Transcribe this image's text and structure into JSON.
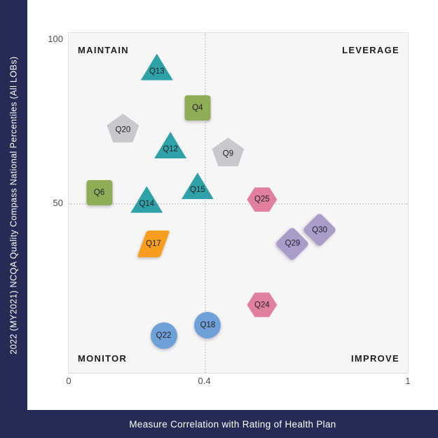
{
  "colors": {
    "navy": "#262B55",
    "plot_bg": "#F6F6F7",
    "plot_border": "#E1E1E4",
    "grid": "#D8D8DB",
    "teal": "#2FA2A9",
    "green": "#8FAC57",
    "gray": "#C9C9CD",
    "orange": "#F99D1E",
    "blue": "#6FA0D7",
    "pink": "#E0809E",
    "purple": "#A99CC8",
    "label_text": "#222327",
    "tick_text": "#4E4E4E"
  },
  "chart_data": {
    "type": "scatter",
    "title": "",
    "xlabel": "Measure Correlation with Rating of Health Plan",
    "ylabel": "2022 (MY2021) NCQA Quality Compass National Percentiles (All LOBs)",
    "xlim": [
      0,
      1
    ],
    "ylim": [
      0,
      100
    ],
    "grid": "quadrant dotted lines only",
    "gridlines": {
      "x": 0.4,
      "y": 50,
      "style": "dotted"
    },
    "x_ticks": [
      {
        "value": 0,
        "label": "0"
      },
      {
        "value": 0.4,
        "label": "0.4"
      },
      {
        "value": 1,
        "label": "1"
      }
    ],
    "y_ticks": [
      {
        "value": 100,
        "label": "100"
      },
      {
        "value": 50,
        "label": "50"
      }
    ],
    "quadrant_labels": {
      "top_left": "MAINTAIN",
      "top_right": "LEVERAGE",
      "bottom_left": "MONITOR",
      "bottom_right": "IMPROVE"
    },
    "points": [
      {
        "label": "Q13",
        "x": 0.26,
        "y": 90,
        "shape": "triangle",
        "color": "teal"
      },
      {
        "label": "Q4",
        "x": 0.38,
        "y": 78,
        "shape": "square",
        "color": "green"
      },
      {
        "label": "Q20",
        "x": 0.16,
        "y": 72,
        "shape": "pentagon",
        "color": "gray"
      },
      {
        "label": "Q12",
        "x": 0.3,
        "y": 67,
        "shape": "triangle",
        "color": "teal"
      },
      {
        "label": "Q9",
        "x": 0.47,
        "y": 65,
        "shape": "pentagon",
        "color": "gray"
      },
      {
        "label": "Q15",
        "x": 0.38,
        "y": 55,
        "shape": "triangle",
        "color": "teal"
      },
      {
        "label": "Q6",
        "x": 0.09,
        "y": 53,
        "shape": "square",
        "color": "green"
      },
      {
        "label": "Q14",
        "x": 0.23,
        "y": 51,
        "shape": "triangle",
        "color": "teal"
      },
      {
        "label": "Q25",
        "x": 0.57,
        "y": 51,
        "shape": "hexagon",
        "color": "pink"
      },
      {
        "label": "Q30",
        "x": 0.74,
        "y": 42,
        "shape": "diamond",
        "color": "purple"
      },
      {
        "label": "Q29",
        "x": 0.66,
        "y": 38,
        "shape": "diamond",
        "color": "purple"
      },
      {
        "label": "Q17",
        "x": 0.25,
        "y": 38,
        "shape": "parallelogram",
        "color": "orange"
      },
      {
        "label": "Q24",
        "x": 0.57,
        "y": 20,
        "shape": "hexagon",
        "color": "pink"
      },
      {
        "label": "Q18",
        "x": 0.41,
        "y": 14,
        "shape": "circle",
        "color": "blue"
      },
      {
        "label": "Q22",
        "x": 0.28,
        "y": 11,
        "shape": "circle",
        "color": "blue"
      }
    ]
  }
}
